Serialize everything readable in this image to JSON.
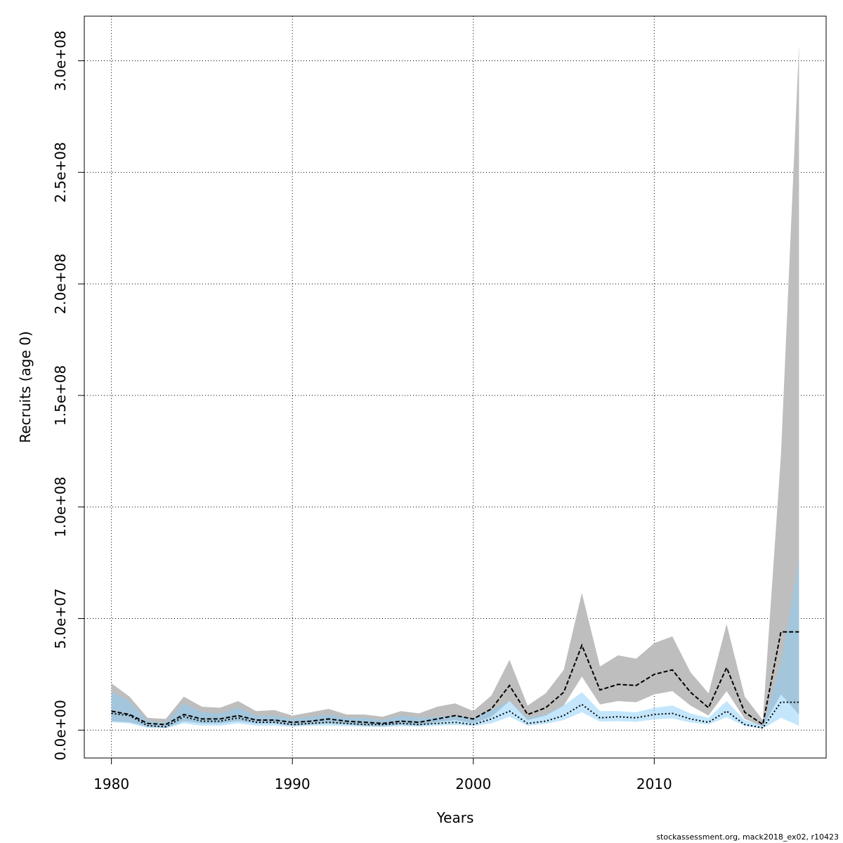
{
  "chart_data": {
    "type": "line",
    "xlabel": "Years",
    "ylabel": "Recruits (age 0)",
    "xlim": [
      1978.5,
      2019.5
    ],
    "ylim": [
      -12500000,
      320000000
    ],
    "x_ticks": [
      1980,
      1990,
      2000,
      2010
    ],
    "x_tick_labels": [
      "1980",
      "1990",
      "2000",
      "2010"
    ],
    "y_ticks": [
      0,
      50000000,
      100000000,
      150000000,
      200000000,
      250000000,
      300000000
    ],
    "y_tick_labels": [
      "0.0e+00",
      "5.0e+07",
      "1.0e+08",
      "1.5e+08",
      "2.0e+08",
      "2.5e+08",
      "3.0e+08"
    ],
    "grid": true,
    "colors": {
      "gray_band": "#bebebe",
      "blue_band": "#87cefa",
      "blue_band_opacity": 0.5,
      "lines": "#000000"
    },
    "x": [
      1980,
      1981,
      1982,
      1983,
      1984,
      1985,
      1986,
      1987,
      1988,
      1989,
      1990,
      1991,
      1992,
      1993,
      1994,
      1995,
      1996,
      1997,
      1998,
      1999,
      2000,
      2001,
      2002,
      2003,
      2004,
      2005,
      2006,
      2007,
      2008,
      2009,
      2010,
      2011,
      2012,
      2013,
      2014,
      2015,
      2016,
      2017,
      2018
    ],
    "series": [
      {
        "style": "dashed",
        "band_color": "gray",
        "values": [
          8500000,
          7000000,
          3000000,
          2500000,
          7000000,
          5000000,
          5000000,
          6500000,
          4500000,
          4500000,
          3500000,
          4000000,
          5000000,
          4000000,
          3500000,
          3000000,
          4000000,
          3500000,
          5000000,
          6500000,
          5000000,
          9500000,
          20000000,
          7000000,
          10000000,
          17000000,
          38000000,
          18000000,
          20500000,
          20000000,
          25000000,
          27000000,
          17000000,
          10000000,
          28000000,
          8000000,
          2500000,
          44000000,
          44000000
        ],
        "lower": [
          4000000,
          3500000,
          1500000,
          1000000,
          4000000,
          3000000,
          3000000,
          4000000,
          3000000,
          3000000,
          2000000,
          2500000,
          3000000,
          2500000,
          2000000,
          1800000,
          2500000,
          2000000,
          3500000,
          4500000,
          3000000,
          6000000,
          13000000,
          4500000,
          6500000,
          11000000,
          24000000,
          11500000,
          13000000,
          12500000,
          16000000,
          17500000,
          11000000,
          6500000,
          17500000,
          5000000,
          1500000,
          16000000,
          7000000
        ],
        "upper": [
          21000000,
          15000000,
          5500000,
          5000000,
          15000000,
          10500000,
          10000000,
          13000000,
          8500000,
          9000000,
          6500000,
          8000000,
          9500000,
          7000000,
          7000000,
          6000000,
          8500000,
          7500000,
          10500000,
          12000000,
          8500000,
          15500000,
          31500000,
          11000000,
          16500000,
          27000000,
          61500000,
          28500000,
          33500000,
          32000000,
          39000000,
          42000000,
          26000000,
          16500000,
          47500000,
          15000000,
          4500000,
          123000000,
          307000000
        ]
      },
      {
        "style": "dotted",
        "band_color": "blue",
        "values": [
          7500000,
          6500000,
          2000000,
          1500000,
          6000000,
          4000000,
          4000000,
          5500000,
          3500000,
          3500000,
          2500000,
          3000000,
          3500000,
          3000000,
          2500000,
          2500000,
          3000000,
          2500000,
          3000000,
          3500000,
          2500000,
          5000000,
          8500000,
          3000000,
          4000000,
          6500000,
          11500000,
          5500000,
          6000000,
          5500000,
          7000000,
          7500000,
          5000000,
          3500000,
          8500000,
          2500000,
          1000000,
          12500000,
          12500000
        ],
        "lower": [
          3500000,
          3000000,
          1000000,
          800000,
          3000000,
          2000000,
          2000000,
          3000000,
          2000000,
          2000000,
          1500000,
          2000000,
          2000000,
          1800000,
          1500000,
          1300000,
          1800000,
          1500000,
          2000000,
          2300000,
          1800000,
          3000000,
          6000000,
          2000000,
          2800000,
          4500000,
          8000000,
          3800000,
          4000000,
          3700000,
          4800000,
          5200000,
          3400000,
          2500000,
          5800000,
          1800000,
          600000,
          5500000,
          2000000
        ],
        "upper": [
          17000000,
          13000000,
          4000000,
          3500000,
          12000000,
          8000000,
          7500000,
          10000000,
          6500000,
          6500000,
          5000000,
          6000000,
          7000000,
          5500000,
          5500000,
          4500000,
          6500000,
          5500000,
          6000000,
          6500000,
          5500000,
          9000000,
          13000000,
          5500000,
          7000000,
          11000000,
          17000000,
          8500000,
          8500000,
          8000000,
          10000000,
          11000000,
          7500000,
          5500000,
          13000000,
          4500000,
          2000000,
          30000000,
          76000000
        ]
      }
    ]
  },
  "footer": "stockassessment.org, mack2018_ex02, r10423"
}
